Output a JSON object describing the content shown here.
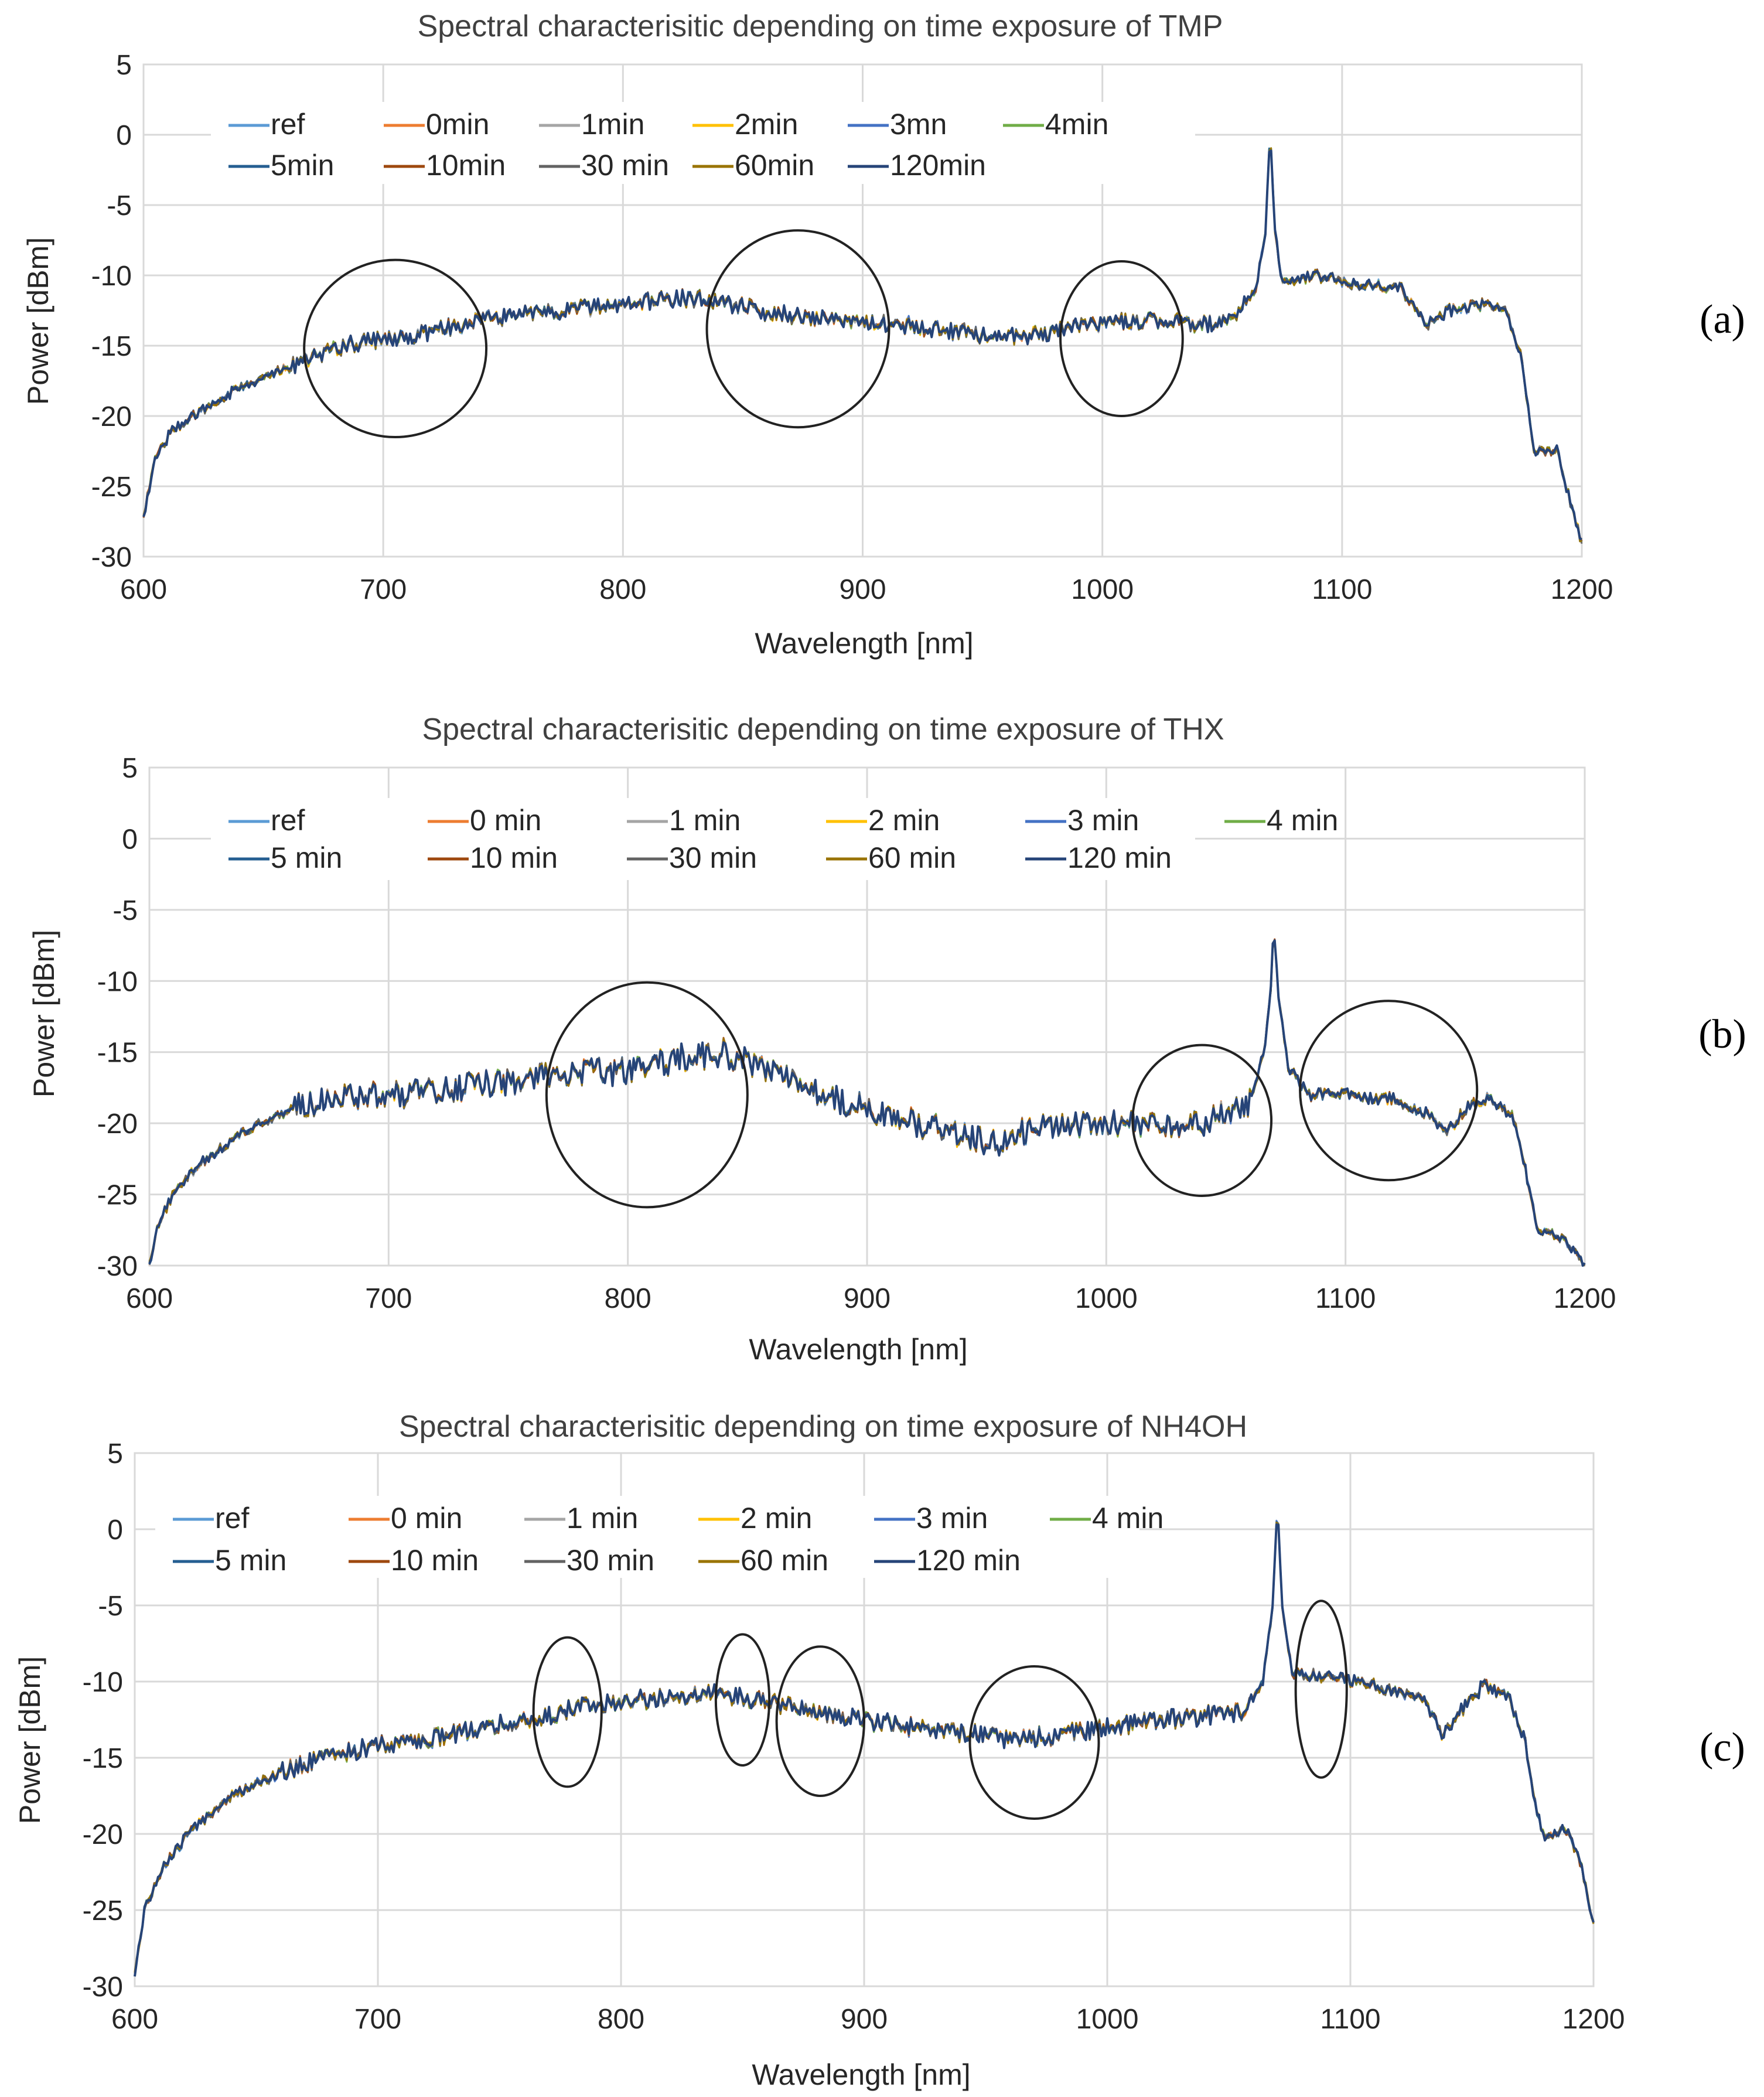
{
  "chart_data": [
    {
      "type": "line",
      "title": "Spectral characterisitic depending on time exposure of TMP",
      "xlabel": "Wavelength [nm]",
      "ylabel": "Power [dBm]",
      "xlim": [
        600,
        1200
      ],
      "ylim": [
        -30,
        5
      ],
      "xticks": [
        "600",
        "700",
        "800",
        "900",
        "1000",
        "1100",
        "1200"
      ],
      "yticks": [
        "5",
        "0",
        "-5",
        "-10",
        "-15",
        "-20",
        "-25",
        "-30"
      ],
      "grid": true,
      "legend_position": "top",
      "panel_label": "(a)",
      "series": [
        {
          "name": "ref",
          "color": "#5b9bd5"
        },
        {
          "name": "0min",
          "color": "#ed7d31"
        },
        {
          "name": "1min",
          "color": "#a5a5a5"
        },
        {
          "name": "2min",
          "color": "#ffc000"
        },
        {
          "name": "3mn",
          "color": "#4472c4"
        },
        {
          "name": "4min",
          "color": "#70ad47"
        },
        {
          "name": "5min",
          "color": "#255e91"
        },
        {
          "name": "10min",
          "color": "#9e480e"
        },
        {
          "name": "30 min",
          "color": "#636363"
        },
        {
          "name": "60min",
          "color": "#997300"
        },
        {
          "name": "120min",
          "color": "#264478"
        }
      ],
      "envelope": [
        [
          600,
          -27
        ],
        [
          605,
          -23
        ],
        [
          612,
          -21
        ],
        [
          625,
          -19.5
        ],
        [
          640,
          -18
        ],
        [
          660,
          -16.5
        ],
        [
          680,
          -15.2
        ],
        [
          700,
          -14.5
        ],
        [
          720,
          -14
        ],
        [
          740,
          -13.2
        ],
        [
          760,
          -12.8
        ],
        [
          780,
          -12.4
        ],
        [
          800,
          -12
        ],
        [
          820,
          -11.6
        ],
        [
          840,
          -11.8
        ],
        [
          860,
          -12.6
        ],
        [
          880,
          -13
        ],
        [
          900,
          -13.3
        ],
        [
          920,
          -13.6
        ],
        [
          940,
          -14
        ],
        [
          960,
          -14.5
        ],
        [
          980,
          -14
        ],
        [
          1000,
          -13.3
        ],
        [
          1020,
          -13.2
        ],
        [
          1040,
          -13.5
        ],
        [
          1055,
          -13
        ],
        [
          1064,
          -11
        ],
        [
          1068,
          -7
        ],
        [
          1070,
          0.5
        ],
        [
          1072,
          -7
        ],
        [
          1075,
          -10.5
        ],
        [
          1090,
          -10
        ],
        [
          1100,
          -10.5
        ],
        [
          1115,
          -10.7
        ],
        [
          1125,
          -11
        ],
        [
          1135,
          -13.5
        ],
        [
          1145,
          -12.5
        ],
        [
          1160,
          -12
        ],
        [
          1168,
          -12.3
        ],
        [
          1175,
          -16
        ],
        [
          1178,
          -20
        ],
        [
          1180,
          -22.5
        ],
        [
          1190,
          -22.5
        ],
        [
          1195,
          -26
        ],
        [
          1200,
          -29
        ]
      ],
      "annotations": [
        {
          "type": "circle",
          "center": [
            705,
            -15.2
          ],
          "radius": [
            38,
            6.3
          ]
        },
        {
          "type": "circle",
          "center": [
            873,
            -13.8
          ],
          "radius": [
            38,
            7
          ]
        },
        {
          "type": "circle",
          "center": [
            1008,
            -14.5
          ],
          "radius": [
            25.5,
            5.5
          ]
        }
      ]
    },
    {
      "type": "line",
      "title": "Spectral characterisitic depending on time exposure of THX",
      "xlabel": "Wavelength [nm]",
      "ylabel": "Power [dBm]",
      "xlim": [
        600,
        1200
      ],
      "ylim": [
        -30,
        5
      ],
      "xticks": [
        "600",
        "700",
        "800",
        "900",
        "1000",
        "1100",
        "1200"
      ],
      "yticks": [
        "5",
        "0",
        "-5",
        "-10",
        "-15",
        "-20",
        "-25",
        "-30"
      ],
      "grid": true,
      "legend_position": "top",
      "panel_label": "(b)",
      "series": [
        {
          "name": "ref",
          "color": "#5b9bd5"
        },
        {
          "name": "0 min",
          "color": "#ed7d31"
        },
        {
          "name": "1 min",
          "color": "#a5a5a5"
        },
        {
          "name": "2 min",
          "color": "#ffc000"
        },
        {
          "name": "3 min",
          "color": "#4472c4"
        },
        {
          "name": "4 min",
          "color": "#70ad47"
        },
        {
          "name": "5 min",
          "color": "#255e91"
        },
        {
          "name": "10 min",
          "color": "#9e480e"
        },
        {
          "name": "30 min",
          "color": "#636363"
        },
        {
          "name": "60 min",
          "color": "#997300"
        },
        {
          "name": "120 min",
          "color": "#264478"
        }
      ],
      "envelope": [
        [
          600,
          -30
        ],
        [
          604,
          -27
        ],
        [
          610,
          -25
        ],
        [
          620,
          -23
        ],
        [
          640,
          -20.5
        ],
        [
          660,
          -19
        ],
        [
          680,
          -18.2
        ],
        [
          700,
          -18
        ],
        [
          720,
          -17.8
        ],
        [
          740,
          -17.2
        ],
        [
          760,
          -16.8
        ],
        [
          780,
          -16.5
        ],
        [
          800,
          -16.3
        ],
        [
          820,
          -15.5
        ],
        [
          840,
          -15
        ],
        [
          860,
          -16.5
        ],
        [
          880,
          -18
        ],
        [
          900,
          -19
        ],
        [
          920,
          -20
        ],
        [
          940,
          -20.8
        ],
        [
          955,
          -21.5
        ],
        [
          965,
          -20.5
        ],
        [
          980,
          -20
        ],
        [
          1000,
          -20
        ],
        [
          1020,
          -20
        ],
        [
          1040,
          -20
        ],
        [
          1060,
          -18.5
        ],
        [
          1066,
          -15
        ],
        [
          1069,
          -10
        ],
        [
          1070,
          -6
        ],
        [
          1072,
          -11
        ],
        [
          1076,
          -16
        ],
        [
          1085,
          -18
        ],
        [
          1100,
          -18
        ],
        [
          1120,
          -18.3
        ],
        [
          1135,
          -19.5
        ],
        [
          1142,
          -20.8
        ],
        [
          1150,
          -19
        ],
        [
          1160,
          -18.2
        ],
        [
          1170,
          -19.5
        ],
        [
          1175,
          -23
        ],
        [
          1180,
          -27.5
        ],
        [
          1190,
          -28
        ],
        [
          1200,
          -30
        ]
      ],
      "annotations": [
        {
          "type": "circle",
          "center": [
            808,
            -18
          ],
          "radius": [
            42,
            7.9
          ]
        },
        {
          "type": "circle",
          "center": [
            1040,
            -19.8
          ],
          "radius": [
            29,
            5.3
          ]
        },
        {
          "type": "circle",
          "center": [
            1118,
            -17.7
          ],
          "radius": [
            37,
            6.3
          ]
        }
      ]
    },
    {
      "type": "line",
      "title": "Spectral characterisitic depending on time exposure of NH4OH",
      "xlabel": "Wavelength [nm]",
      "ylabel": "Power [dBm]",
      "xlim": [
        600,
        1200
      ],
      "ylim": [
        -30,
        5
      ],
      "xticks": [
        "600",
        "700",
        "800",
        "900",
        "1000",
        "1100",
        "1200"
      ],
      "yticks": [
        "5",
        "0",
        "-5",
        "-10",
        "-15",
        "-20",
        "-25",
        "-30"
      ],
      "grid": true,
      "legend_position": "top",
      "panel_label": "(c)",
      "series": [
        {
          "name": "ref",
          "color": "#5b9bd5"
        },
        {
          "name": "0 min",
          "color": "#ed7d31"
        },
        {
          "name": "1 min",
          "color": "#a5a5a5"
        },
        {
          "name": "2 min",
          "color": "#ffc000"
        },
        {
          "name": "3 min",
          "color": "#4472c4"
        },
        {
          "name": "4 min",
          "color": "#70ad47"
        },
        {
          "name": "5 min",
          "color": "#255e91"
        },
        {
          "name": "10 min",
          "color": "#9e480e"
        },
        {
          "name": "30 min",
          "color": "#636363"
        },
        {
          "name": "60 min",
          "color": "#997300"
        },
        {
          "name": "120 min",
          "color": "#264478"
        }
      ],
      "envelope": [
        [
          600,
          -29
        ],
        [
          604,
          -25
        ],
        [
          612,
          -22
        ],
        [
          625,
          -19.5
        ],
        [
          640,
          -17.5
        ],
        [
          660,
          -16
        ],
        [
          680,
          -14.8
        ],
        [
          700,
          -14.2
        ],
        [
          720,
          -13.8
        ],
        [
          740,
          -13.2
        ],
        [
          760,
          -12.5
        ],
        [
          780,
          -11.8
        ],
        [
          800,
          -11.3
        ],
        [
          820,
          -11
        ],
        [
          840,
          -10.8
        ],
        [
          860,
          -11.3
        ],
        [
          880,
          -12
        ],
        [
          900,
          -12.5
        ],
        [
          920,
          -13
        ],
        [
          940,
          -13.3
        ],
        [
          960,
          -13.8
        ],
        [
          980,
          -13.5
        ],
        [
          1000,
          -13
        ],
        [
          1020,
          -12.6
        ],
        [
          1040,
          -12.2
        ],
        [
          1055,
          -12
        ],
        [
          1064,
          -10
        ],
        [
          1068,
          -5
        ],
        [
          1070,
          1.5
        ],
        [
          1072,
          -5
        ],
        [
          1076,
          -9.5
        ],
        [
          1090,
          -9.6
        ],
        [
          1110,
          -10.2
        ],
        [
          1130,
          -11.2
        ],
        [
          1138,
          -13.5
        ],
        [
          1145,
          -12
        ],
        [
          1155,
          -10.2
        ],
        [
          1165,
          -11
        ],
        [
          1172,
          -14
        ],
        [
          1176,
          -18
        ],
        [
          1180,
          -20.5
        ],
        [
          1188,
          -19.5
        ],
        [
          1195,
          -22
        ],
        [
          1200,
          -26
        ]
      ],
      "annotations": [
        {
          "type": "circle",
          "center": [
            778,
            -12
          ],
          "radius": [
            14,
            4.9
          ]
        },
        {
          "type": "circle",
          "center": [
            850,
            -11.2
          ],
          "radius": [
            11,
            4.3
          ]
        },
        {
          "type": "circle",
          "center": [
            882,
            -12.6
          ],
          "radius": [
            18,
            4.9
          ]
        },
        {
          "type": "circle",
          "center": [
            970,
            -14
          ],
          "radius": [
            26.5,
            5
          ]
        },
        {
          "type": "circle",
          "center": [
            1088,
            -10.5
          ],
          "radius": [
            10.5,
            5.8
          ]
        }
      ]
    }
  ]
}
